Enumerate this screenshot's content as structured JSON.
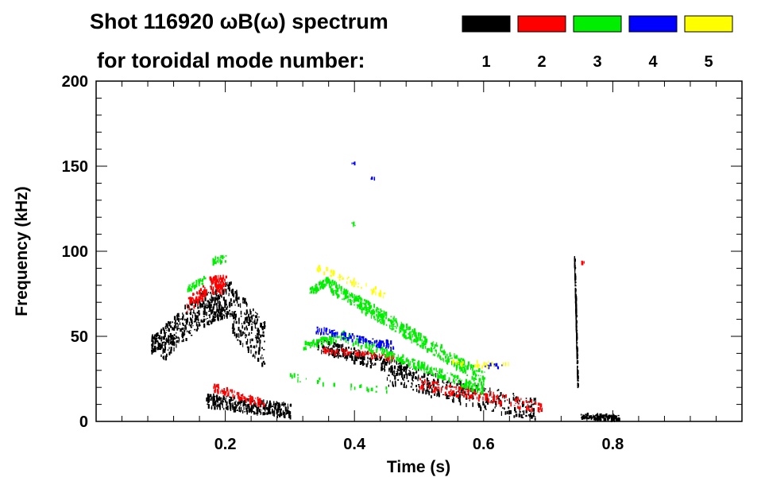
{
  "chart_data": {
    "type": "spectrogram",
    "title_line1": "Shot 116920 ωB(ω) spectrum",
    "title_line2": "for toroidal mode number:",
    "xlabel": "Time (s)",
    "ylabel": "Frequency (kHz)",
    "xlim": [
      0.0,
      1.0
    ],
    "ylim": [
      0,
      200
    ],
    "xticks": [
      0.2,
      0.4,
      0.6,
      0.8
    ],
    "xtick_labels": [
      "0.2",
      "0.4",
      "0.6",
      "0.8"
    ],
    "yticks": [
      0,
      50,
      100,
      150,
      200
    ],
    "ytick_labels": [
      "0",
      "50",
      "100",
      "150",
      "200"
    ],
    "legend": [
      {
        "label": "1",
        "color": "#000000"
      },
      {
        "label": "2",
        "color": "#ff0000"
      },
      {
        "label": "3",
        "color": "#00ee00"
      },
      {
        "label": "4",
        "color": "#0000ff"
      },
      {
        "label": "5",
        "color": "#ffff00"
      }
    ],
    "series": [
      {
        "name": "n=1",
        "color": "#000000",
        "segments": [
          {
            "t0": 0.085,
            "f0": 45,
            "t1": 0.1,
            "f1": 48,
            "spread": 5,
            "count": 60
          },
          {
            "t0": 0.1,
            "f0": 45,
            "t1": 0.16,
            "f1": 65,
            "spread": 10,
            "count": 220
          },
          {
            "t0": 0.16,
            "f0": 65,
            "t1": 0.21,
            "f1": 72,
            "spread": 10,
            "count": 220
          },
          {
            "t0": 0.21,
            "f0": 65,
            "t1": 0.26,
            "f1": 45,
            "spread": 14,
            "count": 200
          },
          {
            "t0": 0.17,
            "f0": 12,
            "t1": 0.3,
            "f1": 6,
            "spread": 4,
            "count": 320
          },
          {
            "t0": 0.34,
            "f0": 45,
            "t1": 0.5,
            "f1": 28,
            "spread": 4,
            "count": 240
          },
          {
            "t0": 0.45,
            "f0": 28,
            "t1": 0.68,
            "f1": 6,
            "spread": 7,
            "count": 320
          },
          {
            "t0": 0.74,
            "f0": 95,
            "t1": 0.745,
            "f1": 20,
            "spread": 2,
            "count": 160
          },
          {
            "t0": 0.75,
            "f0": 3,
            "t1": 0.81,
            "f1": 2,
            "spread": 1.5,
            "count": 110
          }
        ]
      },
      {
        "name": "n=2",
        "color": "#ff0000",
        "segments": [
          {
            "t0": 0.14,
            "f0": 68,
            "t1": 0.17,
            "f1": 77,
            "spread": 4,
            "count": 70
          },
          {
            "t0": 0.175,
            "f0": 80,
            "t1": 0.2,
            "f1": 80,
            "spread": 5,
            "count": 90
          },
          {
            "t0": 0.18,
            "f0": 20,
            "t1": 0.26,
            "f1": 10,
            "spread": 2,
            "count": 80
          },
          {
            "t0": 0.35,
            "f0": 42,
            "t1": 0.46,
            "f1": 37,
            "spread": 1.5,
            "count": 80
          },
          {
            "t0": 0.5,
            "f0": 22,
            "t1": 0.69,
            "f1": 8,
            "spread": 3,
            "count": 160
          },
          {
            "t0": 0.75,
            "f0": 93,
            "t1": 0.755,
            "f1": 93,
            "spread": 1,
            "count": 6
          }
        ]
      },
      {
        "name": "n=3",
        "color": "#00ee00",
        "segments": [
          {
            "t0": 0.14,
            "f0": 78,
            "t1": 0.17,
            "f1": 84,
            "spread": 2,
            "count": 30
          },
          {
            "t0": 0.18,
            "f0": 94,
            "t1": 0.2,
            "f1": 96,
            "spread": 2,
            "count": 25
          },
          {
            "t0": 0.33,
            "f0": 76,
            "t1": 0.36,
            "f1": 83,
            "spread": 2,
            "count": 60
          },
          {
            "t0": 0.36,
            "f0": 80,
            "t1": 0.6,
            "f1": 25,
            "spread": 4,
            "count": 500
          },
          {
            "t0": 0.32,
            "f0": 44,
            "t1": 0.38,
            "f1": 50,
            "spread": 2,
            "count": 80
          },
          {
            "t0": 0.38,
            "f0": 50,
            "t1": 0.6,
            "f1": 18,
            "spread": 2.5,
            "count": 260
          },
          {
            "t0": 0.3,
            "f0": 26,
            "t1": 0.45,
            "f1": 18,
            "spread": 2,
            "count": 30
          },
          {
            "t0": 0.395,
            "f0": 116,
            "t1": 0.4,
            "f1": 116,
            "spread": 1,
            "count": 4
          }
        ]
      },
      {
        "name": "n=4",
        "color": "#0000ff",
        "segments": [
          {
            "t0": 0.34,
            "f0": 54,
            "t1": 0.46,
            "f1": 44,
            "spread": 2,
            "count": 110
          },
          {
            "t0": 0.6,
            "f0": 33,
            "t1": 0.63,
            "f1": 32,
            "spread": 1,
            "count": 10
          },
          {
            "t0": 0.395,
            "f0": 151,
            "t1": 0.4,
            "f1": 151,
            "spread": 1,
            "count": 3
          },
          {
            "t0": 0.425,
            "f0": 143,
            "t1": 0.43,
            "f1": 143,
            "spread": 1,
            "count": 3
          }
        ]
      },
      {
        "name": "n=5",
        "color": "#ffff00",
        "segments": [
          {
            "t0": 0.34,
            "f0": 90,
            "t1": 0.45,
            "f1": 74,
            "spread": 2,
            "count": 50
          },
          {
            "t0": 0.55,
            "f0": 36,
            "t1": 0.64,
            "f1": 32,
            "spread": 2,
            "count": 25
          }
        ]
      }
    ]
  }
}
